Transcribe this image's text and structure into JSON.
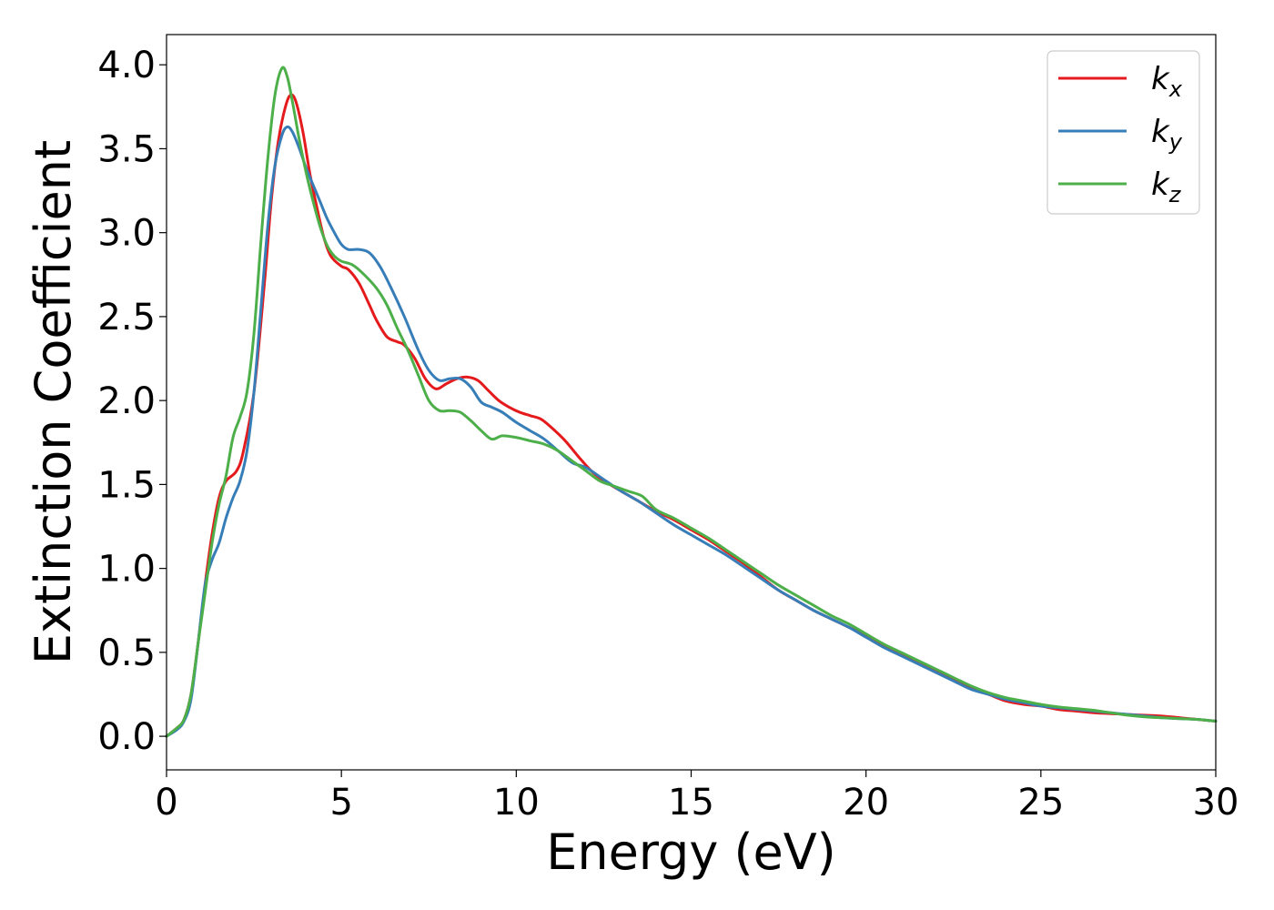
{
  "chart_data": {
    "type": "line",
    "title": "",
    "xlabel": "Energy (eV)",
    "ylabel": "Extinction Coefficient",
    "xlim": [
      0,
      30
    ],
    "ylim": [
      -0.2,
      4.18
    ],
    "xticks": [
      0,
      5,
      10,
      15,
      20,
      25,
      30
    ],
    "xtick_labels": [
      "0",
      "5",
      "10",
      "15",
      "20",
      "25",
      "30"
    ],
    "yticks": [
      0.0,
      0.5,
      1.0,
      1.5,
      2.0,
      2.5,
      3.0,
      3.5,
      4.0
    ],
    "ytick_labels": [
      "0.0",
      "0.5",
      "1.0",
      "1.5",
      "2.0",
      "2.5",
      "3.0",
      "3.5",
      "4.0"
    ],
    "grid": false,
    "legend_position": "top-right",
    "series": [
      {
        "name": "k",
        "subscript": "x",
        "color": "#e41a1c",
        "points": [
          [
            0,
            0.0
          ],
          [
            0.3,
            0.05
          ],
          [
            0.5,
            0.1
          ],
          [
            0.7,
            0.25
          ],
          [
            0.9,
            0.55
          ],
          [
            1.1,
            0.9
          ],
          [
            1.3,
            1.2
          ],
          [
            1.5,
            1.42
          ],
          [
            1.7,
            1.52
          ],
          [
            2.0,
            1.58
          ],
          [
            2.2,
            1.7
          ],
          [
            2.5,
            2.05
          ],
          [
            2.8,
            2.7
          ],
          [
            3.0,
            3.2
          ],
          [
            3.2,
            3.55
          ],
          [
            3.4,
            3.75
          ],
          [
            3.55,
            3.82
          ],
          [
            3.7,
            3.78
          ],
          [
            3.9,
            3.6
          ],
          [
            4.1,
            3.35
          ],
          [
            4.3,
            3.15
          ],
          [
            4.5,
            2.97
          ],
          [
            4.7,
            2.86
          ],
          [
            5.0,
            2.8
          ],
          [
            5.2,
            2.78
          ],
          [
            5.5,
            2.7
          ],
          [
            5.8,
            2.57
          ],
          [
            6.0,
            2.48
          ],
          [
            6.3,
            2.38
          ],
          [
            6.6,
            2.35
          ],
          [
            6.8,
            2.33
          ],
          [
            7.1,
            2.25
          ],
          [
            7.4,
            2.13
          ],
          [
            7.7,
            2.07
          ],
          [
            8.0,
            2.1
          ],
          [
            8.3,
            2.13
          ],
          [
            8.6,
            2.14
          ],
          [
            8.9,
            2.12
          ],
          [
            9.2,
            2.06
          ],
          [
            9.5,
            2.0
          ],
          [
            9.8,
            1.96
          ],
          [
            10.1,
            1.93
          ],
          [
            10.4,
            1.91
          ],
          [
            10.7,
            1.89
          ],
          [
            11.0,
            1.84
          ],
          [
            11.4,
            1.76
          ],
          [
            11.8,
            1.66
          ],
          [
            12.2,
            1.57
          ],
          [
            12.6,
            1.51
          ],
          [
            13.0,
            1.46
          ],
          [
            13.5,
            1.4
          ],
          [
            14.0,
            1.34
          ],
          [
            14.5,
            1.29
          ],
          [
            15.0,
            1.23
          ],
          [
            15.5,
            1.17
          ],
          [
            16.0,
            1.1
          ],
          [
            16.5,
            1.03
          ],
          [
            17.0,
            0.95
          ],
          [
            17.5,
            0.87
          ],
          [
            18.0,
            0.81
          ],
          [
            18.5,
            0.75
          ],
          [
            19.0,
            0.7
          ],
          [
            19.5,
            0.65
          ],
          [
            20.0,
            0.6
          ],
          [
            20.5,
            0.54
          ],
          [
            21.0,
            0.49
          ],
          [
            21.5,
            0.44
          ],
          [
            22.0,
            0.39
          ],
          [
            22.5,
            0.34
          ],
          [
            23.0,
            0.29
          ],
          [
            23.5,
            0.25
          ],
          [
            24.0,
            0.21
          ],
          [
            24.5,
            0.19
          ],
          [
            25.0,
            0.18
          ],
          [
            25.5,
            0.16
          ],
          [
            26.0,
            0.15
          ],
          [
            26.5,
            0.14
          ],
          [
            27.0,
            0.135
          ],
          [
            27.5,
            0.13
          ],
          [
            28.0,
            0.125
          ],
          [
            28.5,
            0.12
          ],
          [
            29.0,
            0.11
          ],
          [
            29.5,
            0.1
          ],
          [
            30.0,
            0.09
          ]
        ]
      },
      {
        "name": "k",
        "subscript": "y",
        "color": "#377eb8",
        "points": [
          [
            0,
            0.0
          ],
          [
            0.3,
            0.04
          ],
          [
            0.5,
            0.09
          ],
          [
            0.7,
            0.22
          ],
          [
            0.9,
            0.55
          ],
          [
            1.1,
            0.9
          ],
          [
            1.3,
            1.05
          ],
          [
            1.5,
            1.15
          ],
          [
            1.7,
            1.3
          ],
          [
            1.9,
            1.42
          ],
          [
            2.1,
            1.52
          ],
          [
            2.3,
            1.7
          ],
          [
            2.5,
            2.05
          ],
          [
            2.7,
            2.55
          ],
          [
            2.9,
            3.05
          ],
          [
            3.1,
            3.4
          ],
          [
            3.3,
            3.58
          ],
          [
            3.45,
            3.63
          ],
          [
            3.6,
            3.6
          ],
          [
            3.8,
            3.5
          ],
          [
            4.0,
            3.38
          ],
          [
            4.2,
            3.28
          ],
          [
            4.4,
            3.18
          ],
          [
            4.6,
            3.08
          ],
          [
            4.8,
            3.0
          ],
          [
            5.0,
            2.93
          ],
          [
            5.2,
            2.9
          ],
          [
            5.5,
            2.9
          ],
          [
            5.8,
            2.88
          ],
          [
            6.1,
            2.8
          ],
          [
            6.4,
            2.68
          ],
          [
            6.8,
            2.5
          ],
          [
            7.2,
            2.3
          ],
          [
            7.5,
            2.18
          ],
          [
            7.8,
            2.12
          ],
          [
            8.1,
            2.13
          ],
          [
            8.4,
            2.13
          ],
          [
            8.7,
            2.08
          ],
          [
            9.0,
            1.99
          ],
          [
            9.3,
            1.96
          ],
          [
            9.6,
            1.93
          ],
          [
            10.0,
            1.87
          ],
          [
            10.4,
            1.82
          ],
          [
            10.8,
            1.77
          ],
          [
            11.2,
            1.7
          ],
          [
            11.6,
            1.63
          ],
          [
            12.0,
            1.6
          ],
          [
            12.5,
            1.53
          ],
          [
            13.0,
            1.46
          ],
          [
            13.5,
            1.4
          ],
          [
            14.0,
            1.33
          ],
          [
            14.5,
            1.26
          ],
          [
            15.0,
            1.2
          ],
          [
            15.5,
            1.14
          ],
          [
            16.0,
            1.08
          ],
          [
            16.5,
            1.01
          ],
          [
            17.0,
            0.94
          ],
          [
            17.5,
            0.87
          ],
          [
            18.0,
            0.81
          ],
          [
            18.5,
            0.75
          ],
          [
            19.0,
            0.7
          ],
          [
            19.5,
            0.65
          ],
          [
            20.0,
            0.59
          ],
          [
            20.5,
            0.53
          ],
          [
            21.0,
            0.48
          ],
          [
            21.5,
            0.43
          ],
          [
            22.0,
            0.38
          ],
          [
            22.5,
            0.33
          ],
          [
            23.0,
            0.28
          ],
          [
            23.5,
            0.25
          ],
          [
            24.0,
            0.22
          ],
          [
            24.5,
            0.2
          ],
          [
            25.0,
            0.18
          ],
          [
            25.5,
            0.17
          ],
          [
            26.0,
            0.16
          ],
          [
            26.5,
            0.15
          ],
          [
            27.0,
            0.14
          ],
          [
            27.5,
            0.13
          ],
          [
            28.0,
            0.12
          ],
          [
            28.5,
            0.11
          ],
          [
            29.0,
            0.105
          ],
          [
            29.5,
            0.1
          ],
          [
            30.0,
            0.09
          ]
        ]
      },
      {
        "name": "k",
        "subscript": "z",
        "color": "#4daf4a",
        "points": [
          [
            0,
            0.0
          ],
          [
            0.3,
            0.05
          ],
          [
            0.5,
            0.1
          ],
          [
            0.7,
            0.25
          ],
          [
            0.9,
            0.55
          ],
          [
            1.1,
            0.85
          ],
          [
            1.3,
            1.15
          ],
          [
            1.5,
            1.38
          ],
          [
            1.7,
            1.55
          ],
          [
            1.9,
            1.78
          ],
          [
            2.1,
            1.9
          ],
          [
            2.3,
            2.05
          ],
          [
            2.5,
            2.4
          ],
          [
            2.7,
            2.95
          ],
          [
            2.9,
            3.45
          ],
          [
            3.1,
            3.82
          ],
          [
            3.3,
            3.98
          ],
          [
            3.45,
            3.93
          ],
          [
            3.6,
            3.78
          ],
          [
            3.8,
            3.55
          ],
          [
            4.0,
            3.35
          ],
          [
            4.2,
            3.18
          ],
          [
            4.4,
            3.03
          ],
          [
            4.6,
            2.92
          ],
          [
            4.8,
            2.86
          ],
          [
            5.0,
            2.83
          ],
          [
            5.3,
            2.81
          ],
          [
            5.6,
            2.76
          ],
          [
            6.0,
            2.67
          ],
          [
            6.3,
            2.57
          ],
          [
            6.6,
            2.43
          ],
          [
            6.9,
            2.3
          ],
          [
            7.2,
            2.15
          ],
          [
            7.5,
            2.0
          ],
          [
            7.8,
            1.94
          ],
          [
            8.1,
            1.94
          ],
          [
            8.4,
            1.93
          ],
          [
            8.7,
            1.88
          ],
          [
            9.0,
            1.82
          ],
          [
            9.3,
            1.77
          ],
          [
            9.6,
            1.79
          ],
          [
            10.0,
            1.78
          ],
          [
            10.4,
            1.76
          ],
          [
            10.8,
            1.74
          ],
          [
            11.2,
            1.7
          ],
          [
            11.6,
            1.64
          ],
          [
            12.0,
            1.58
          ],
          [
            12.4,
            1.52
          ],
          [
            12.8,
            1.49
          ],
          [
            13.2,
            1.46
          ],
          [
            13.6,
            1.43
          ],
          [
            14.0,
            1.35
          ],
          [
            14.5,
            1.3
          ],
          [
            15.0,
            1.24
          ],
          [
            15.5,
            1.18
          ],
          [
            16.0,
            1.11
          ],
          [
            16.5,
            1.04
          ],
          [
            17.0,
            0.97
          ],
          [
            17.5,
            0.9
          ],
          [
            18.0,
            0.84
          ],
          [
            18.5,
            0.78
          ],
          [
            19.0,
            0.72
          ],
          [
            19.5,
            0.67
          ],
          [
            20.0,
            0.61
          ],
          [
            20.5,
            0.55
          ],
          [
            21.0,
            0.5
          ],
          [
            21.5,
            0.45
          ],
          [
            22.0,
            0.4
          ],
          [
            22.5,
            0.35
          ],
          [
            23.0,
            0.3
          ],
          [
            23.5,
            0.26
          ],
          [
            24.0,
            0.23
          ],
          [
            24.5,
            0.21
          ],
          [
            25.0,
            0.19
          ],
          [
            25.5,
            0.175
          ],
          [
            26.0,
            0.165
          ],
          [
            26.5,
            0.155
          ],
          [
            27.0,
            0.14
          ],
          [
            27.5,
            0.125
          ],
          [
            28.0,
            0.115
          ],
          [
            28.5,
            0.11
          ],
          [
            29.0,
            0.105
          ],
          [
            29.5,
            0.1
          ],
          [
            30.0,
            0.09
          ]
        ]
      }
    ]
  }
}
